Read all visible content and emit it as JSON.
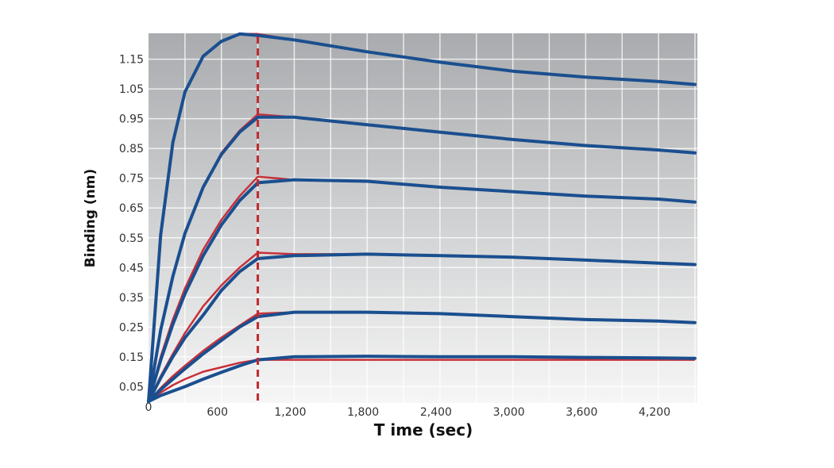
{
  "chart_data": {
    "type": "line",
    "title": "",
    "xlabel": "T ime (sec)",
    "ylabel": "Binding (nm)",
    "xlim": [
      0,
      4520
    ],
    "ylim": [
      -0.005,
      1.237
    ],
    "x_ticks": [
      0,
      600,
      1200,
      1800,
      2400,
      3000,
      3600,
      4200
    ],
    "x_tick_labels": [
      "0",
      "600",
      "1,200",
      "1,800",
      "2,400",
      "3,000",
      "3,600",
      "4,200"
    ],
    "y_ticks": [
      0.05,
      0.15,
      0.25,
      0.35,
      0.45,
      0.55,
      0.65,
      0.75,
      0.85,
      0.95,
      1.05,
      1.15
    ],
    "y_tick_labels": [
      "0.05",
      "0.15",
      "0.25",
      "0.35",
      "0.45",
      "0.55",
      "0.65",
      "0.75",
      "0.85",
      "0.95",
      "1.05",
      "1.15"
    ],
    "grid": true,
    "legend": "none",
    "vertical_marker": {
      "x": 900,
      "style": "dashed",
      "color": "#c0282d"
    },
    "colors": {
      "data": "#1a4f8f",
      "fit": "#c8303a",
      "background_top": "#a9abae",
      "background_bottom": "#f4f4f4"
    },
    "x": [
      0,
      100,
      200,
      300,
      450,
      600,
      750,
      900,
      1200,
      1800,
      2400,
      3000,
      3600,
      4200,
      4500
    ],
    "series": [
      {
        "values": [
          0,
          0.56,
          0.87,
          1.04,
          1.16,
          1.21,
          1.235,
          1.23,
          1.215,
          1.175,
          1.14,
          1.11,
          1.09,
          1.075,
          1.065
        ],
        "fit": [
          0,
          0.56,
          0.87,
          1.04,
          1.16,
          1.21,
          1.235,
          1.235,
          1.215,
          1.175,
          1.14,
          1.11,
          1.09,
          1.075,
          1.065
        ]
      },
      {
        "values": [
          0,
          0.24,
          0.42,
          0.565,
          0.72,
          0.83,
          0.905,
          0.955,
          0.955,
          0.93,
          0.905,
          0.88,
          0.86,
          0.845,
          0.835
        ],
        "fit": [
          0,
          0.24,
          0.42,
          0.565,
          0.72,
          0.835,
          0.91,
          0.965,
          0.955,
          0.93,
          0.905,
          0.88,
          0.86,
          0.845,
          0.835
        ]
      },
      {
        "values": [
          0,
          0.139,
          0.259,
          0.362,
          0.49,
          0.593,
          0.675,
          0.735,
          0.745,
          0.74,
          0.72,
          0.705,
          0.69,
          0.68,
          0.67
        ],
        "fit": [
          0,
          0.15,
          0.275,
          0.38,
          0.51,
          0.61,
          0.69,
          0.755,
          0.745,
          0.74,
          0.72,
          0.705,
          0.69,
          0.68,
          0.67
        ]
      },
      {
        "values": [
          0,
          0.079,
          0.15,
          0.214,
          0.29,
          0.373,
          0.436,
          0.48,
          0.49,
          0.495,
          0.49,
          0.485,
          0.475,
          0.465,
          0.46
        ],
        "fit": [
          0,
          0.085,
          0.16,
          0.23,
          0.32,
          0.39,
          0.45,
          0.5,
          0.495,
          0.495,
          0.49,
          0.485,
          0.475,
          0.465,
          0.46
        ]
      },
      {
        "values": [
          0,
          0.04,
          0.075,
          0.11,
          0.16,
          0.205,
          0.25,
          0.285,
          0.3,
          0.3,
          0.295,
          0.285,
          0.275,
          0.27,
          0.265
        ],
        "fit": [
          0,
          0.045,
          0.085,
          0.12,
          0.17,
          0.215,
          0.255,
          0.295,
          0.3,
          0.3,
          0.295,
          0.285,
          0.275,
          0.27,
          0.265
        ]
      },
      {
        "values": [
          0,
          0.02,
          0.035,
          0.05,
          0.075,
          0.098,
          0.12,
          0.14,
          0.15,
          0.152,
          0.15,
          0.15,
          0.148,
          0.146,
          0.145
        ],
        "fit": [
          0,
          0.03,
          0.055,
          0.075,
          0.1,
          0.115,
          0.13,
          0.14,
          0.14,
          0.14,
          0.14,
          0.14,
          0.14,
          0.14,
          0.14
        ]
      }
    ]
  }
}
